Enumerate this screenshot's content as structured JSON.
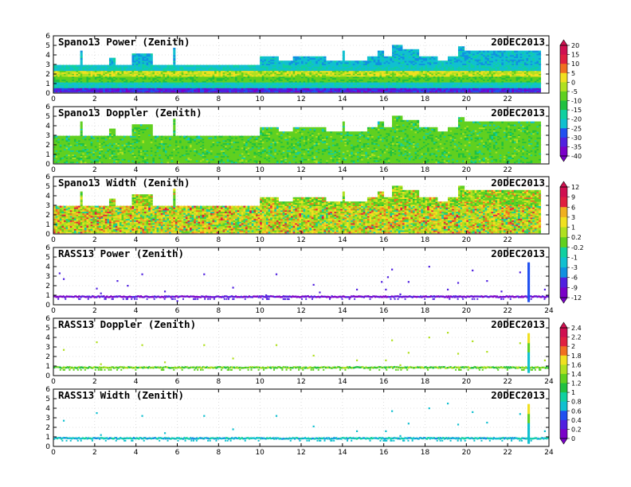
{
  "chart_data": [
    {
      "type": "heatmap",
      "title": "Spano13 Power (Zenith)",
      "date": "20DEC2013",
      "xlim": [
        0,
        24
      ],
      "ylim": [
        0,
        6
      ],
      "xticks": [
        0,
        2,
        4,
        6,
        8,
        10,
        12,
        14,
        16,
        18,
        20,
        22
      ],
      "yticks": [
        0,
        1,
        2,
        3,
        4,
        5,
        6
      ],
      "field": "power",
      "top_height_profile": [
        [
          0,
          2.8
        ],
        [
          1.2,
          2.8
        ],
        [
          1.3,
          4.3
        ],
        [
          1.4,
          2.8
        ],
        [
          2.6,
          2.8
        ],
        [
          2.7,
          3.6
        ],
        [
          3.0,
          2.8
        ],
        [
          3.7,
          2.8
        ],
        [
          3.8,
          4.1
        ],
        [
          4.6,
          4.1
        ],
        [
          4.7,
          2.8
        ],
        [
          5.6,
          2.8
        ],
        [
          5.7,
          4.7
        ],
        [
          5.8,
          2.8
        ],
        [
          9.8,
          2.8
        ],
        [
          9.9,
          3.8
        ],
        [
          10.7,
          3.8
        ],
        [
          10.8,
          3.3
        ],
        [
          11.4,
          3.3
        ],
        [
          11.5,
          3.8
        ],
        [
          13.0,
          3.8
        ],
        [
          13.1,
          3.3
        ],
        [
          13.8,
          3.3
        ],
        [
          13.9,
          4.3
        ],
        [
          14.0,
          3.3
        ],
        [
          15.0,
          3.3
        ],
        [
          15.1,
          3.7
        ],
        [
          15.5,
          3.7
        ],
        [
          15.6,
          4.3
        ],
        [
          15.8,
          4.3
        ],
        [
          15.9,
          3.7
        ],
        [
          16.2,
          3.7
        ],
        [
          16.3,
          5.0
        ],
        [
          16.7,
          5.0
        ],
        [
          16.8,
          4.6
        ],
        [
          17.5,
          4.6
        ],
        [
          17.6,
          3.7
        ],
        [
          18.4,
          3.7
        ],
        [
          18.5,
          3.3
        ],
        [
          19.0,
          3.3
        ],
        [
          19.1,
          3.8
        ],
        [
          19.5,
          3.8
        ],
        [
          19.6,
          4.8
        ],
        [
          19.8,
          4.8
        ],
        [
          19.9,
          4.3
        ],
        [
          23.3,
          4.3
        ],
        [
          23.6,
          4.3
        ]
      ]
    },
    {
      "type": "heatmap",
      "title": "Spano13 Doppler (Zenith)",
      "date": "20DEC2013",
      "xlim": [
        0,
        24
      ],
      "ylim": [
        0,
        6
      ],
      "xticks": [
        0,
        2,
        4,
        6,
        8,
        10,
        12,
        14,
        16,
        18,
        20,
        22
      ],
      "yticks": [
        0,
        1,
        2,
        3,
        4,
        5,
        6
      ],
      "field": "doppler",
      "top_height_profile": [
        [
          0,
          2.8
        ],
        [
          1.2,
          2.8
        ],
        [
          1.3,
          4.3
        ],
        [
          1.4,
          2.8
        ],
        [
          2.6,
          2.8
        ],
        [
          2.7,
          3.6
        ],
        [
          3.0,
          2.8
        ],
        [
          3.7,
          2.8
        ],
        [
          3.8,
          4.1
        ],
        [
          4.6,
          4.1
        ],
        [
          4.7,
          2.8
        ],
        [
          5.6,
          2.8
        ],
        [
          5.7,
          4.7
        ],
        [
          5.8,
          2.8
        ],
        [
          9.8,
          2.8
        ],
        [
          9.9,
          3.8
        ],
        [
          10.7,
          3.8
        ],
        [
          10.8,
          3.3
        ],
        [
          11.4,
          3.3
        ],
        [
          11.5,
          3.8
        ],
        [
          13.0,
          3.8
        ],
        [
          13.1,
          3.3
        ],
        [
          13.8,
          3.3
        ],
        [
          13.9,
          4.3
        ],
        [
          14.0,
          3.3
        ],
        [
          15.0,
          3.3
        ],
        [
          15.1,
          3.7
        ],
        [
          15.5,
          3.7
        ],
        [
          15.6,
          4.3
        ],
        [
          15.8,
          4.3
        ],
        [
          15.9,
          3.7
        ],
        [
          16.2,
          3.7
        ],
        [
          16.3,
          5.0
        ],
        [
          16.7,
          5.0
        ],
        [
          16.8,
          4.6
        ],
        [
          17.5,
          4.6
        ],
        [
          17.6,
          3.7
        ],
        [
          18.4,
          3.7
        ],
        [
          18.5,
          3.3
        ],
        [
          19.0,
          3.3
        ],
        [
          19.1,
          3.8
        ],
        [
          19.5,
          3.8
        ],
        [
          19.6,
          4.8
        ],
        [
          19.8,
          4.8
        ],
        [
          19.9,
          4.3
        ],
        [
          23.3,
          4.3
        ],
        [
          23.6,
          4.3
        ]
      ]
    },
    {
      "type": "heatmap",
      "title": "Spano13 Width (Zenith)",
      "date": "20DEC2013",
      "xlim": [
        0,
        24
      ],
      "ylim": [
        0,
        6
      ],
      "xticks": [
        0,
        2,
        4,
        6,
        8,
        10,
        12,
        14,
        16,
        18,
        20,
        22
      ],
      "yticks": [
        0,
        1,
        2,
        3,
        4,
        5,
        6
      ],
      "field": "width",
      "top_height_profile": [
        [
          0,
          2.8
        ],
        [
          1.2,
          2.8
        ],
        [
          1.3,
          4.3
        ],
        [
          1.4,
          2.8
        ],
        [
          2.6,
          2.8
        ],
        [
          2.7,
          3.6
        ],
        [
          3.0,
          2.8
        ],
        [
          3.7,
          2.8
        ],
        [
          3.8,
          4.1
        ],
        [
          4.6,
          4.1
        ],
        [
          4.7,
          2.8
        ],
        [
          5.6,
          2.8
        ],
        [
          5.7,
          4.7
        ],
        [
          5.8,
          2.8
        ],
        [
          9.8,
          2.8
        ],
        [
          9.9,
          3.8
        ],
        [
          10.7,
          3.8
        ],
        [
          10.8,
          3.3
        ],
        [
          11.4,
          3.3
        ],
        [
          11.5,
          3.8
        ],
        [
          13.0,
          3.8
        ],
        [
          13.1,
          3.3
        ],
        [
          13.8,
          3.3
        ],
        [
          13.9,
          4.3
        ],
        [
          14.0,
          3.3
        ],
        [
          15.0,
          3.3
        ],
        [
          15.1,
          3.7
        ],
        [
          15.5,
          3.7
        ],
        [
          15.6,
          4.3
        ],
        [
          15.8,
          4.3
        ],
        [
          15.9,
          3.7
        ],
        [
          16.2,
          3.7
        ],
        [
          16.3,
          5.0
        ],
        [
          16.7,
          5.0
        ],
        [
          16.8,
          4.6
        ],
        [
          17.5,
          4.6
        ],
        [
          17.6,
          3.7
        ],
        [
          18.4,
          3.7
        ],
        [
          18.5,
          3.3
        ],
        [
          19.0,
          3.3
        ],
        [
          19.1,
          3.8
        ],
        [
          19.5,
          3.8
        ],
        [
          19.6,
          5.0
        ],
        [
          19.8,
          5.0
        ],
        [
          19.9,
          4.6
        ],
        [
          23.3,
          4.6
        ],
        [
          23.6,
          4.6
        ]
      ]
    },
    {
      "type": "scatter",
      "title": "RASS13 Power (Zenith)",
      "date": "20DEC2013",
      "xlim": [
        0,
        24
      ],
      "ylim": [
        0,
        6
      ],
      "xticks": [
        0,
        2,
        4,
        6,
        8,
        10,
        12,
        14,
        16,
        18,
        20,
        22,
        24
      ],
      "yticks": [
        0,
        1,
        2,
        3,
        4,
        5,
        6
      ],
      "field": "power",
      "band_height": 0.85,
      "spike_x": 23.0,
      "points": [
        [
          0.3,
          3.3
        ],
        [
          0.5,
          2.7
        ],
        [
          2.1,
          1.7
        ],
        [
          2.3,
          1.2
        ],
        [
          3.1,
          2.5
        ],
        [
          3.6,
          2.0
        ],
        [
          4.3,
          3.2
        ],
        [
          5.4,
          1.4
        ],
        [
          6.0,
          0.4
        ],
        [
          7.3,
          3.2
        ],
        [
          8.7,
          1.8
        ],
        [
          10.3,
          1.0
        ],
        [
          10.8,
          3.2
        ],
        [
          11.4,
          0.6
        ],
        [
          12.6,
          2.1
        ],
        [
          12.9,
          1.3
        ],
        [
          14.7,
          1.6
        ],
        [
          15.9,
          2.4
        ],
        [
          16.1,
          1.6
        ],
        [
          16.2,
          2.9
        ],
        [
          16.4,
          3.7
        ],
        [
          16.8,
          1.1
        ],
        [
          17.2,
          2.4
        ],
        [
          18.2,
          4.0
        ],
        [
          19.1,
          1.6
        ],
        [
          19.6,
          2.3
        ],
        [
          20.3,
          3.6
        ],
        [
          21.0,
          2.5
        ],
        [
          21.7,
          1.4
        ],
        [
          22.6,
          3.4
        ],
        [
          23.8,
          1.6
        ]
      ]
    },
    {
      "type": "scatter",
      "title": "RASS13 Doppler (Zenith)",
      "date": "20DEC2013",
      "xlim": [
        0,
        24
      ],
      "ylim": [
        0,
        6
      ],
      "xticks": [
        0,
        2,
        4,
        6,
        8,
        10,
        12,
        14,
        16,
        18,
        20,
        22,
        24
      ],
      "yticks": [
        0,
        1,
        2,
        3,
        4,
        5,
        6
      ],
      "field": "doppler",
      "band_height": 0.85,
      "spike_x": 23.0,
      "points": [
        [
          0.5,
          2.7
        ],
        [
          2.1,
          3.5
        ],
        [
          2.3,
          1.2
        ],
        [
          4.3,
          3.2
        ],
        [
          5.4,
          1.4
        ],
        [
          7.3,
          3.2
        ],
        [
          8.7,
          1.8
        ],
        [
          10.8,
          3.2
        ],
        [
          12.6,
          2.1
        ],
        [
          14.7,
          1.6
        ],
        [
          16.1,
          1.6
        ],
        [
          16.4,
          3.7
        ],
        [
          16.8,
          1.1
        ],
        [
          17.2,
          2.4
        ],
        [
          18.2,
          4.0
        ],
        [
          19.1,
          4.5
        ],
        [
          19.6,
          2.3
        ],
        [
          20.3,
          3.6
        ],
        [
          21.0,
          2.5
        ],
        [
          22.6,
          3.4
        ],
        [
          23.8,
          1.6
        ]
      ]
    },
    {
      "type": "scatter",
      "title": "RASS13 Width (Zenith)",
      "date": "20DEC2013",
      "xlim": [
        0,
        24
      ],
      "ylim": [
        0,
        6
      ],
      "xticks": [
        0,
        2,
        4,
        6,
        8,
        10,
        12,
        14,
        16,
        18,
        20,
        22,
        24
      ],
      "yticks": [
        0,
        1,
        2,
        3,
        4,
        5,
        6
      ],
      "field": "width",
      "band_height": 0.85,
      "spike_x": 23.0,
      "points": [
        [
          0.5,
          2.7
        ],
        [
          2.1,
          3.5
        ],
        [
          2.3,
          1.2
        ],
        [
          4.3,
          3.2
        ],
        [
          5.4,
          1.4
        ],
        [
          7.3,
          3.2
        ],
        [
          8.7,
          1.8
        ],
        [
          10.8,
          3.2
        ],
        [
          12.6,
          2.1
        ],
        [
          14.7,
          1.6
        ],
        [
          16.1,
          1.6
        ],
        [
          16.4,
          3.7
        ],
        [
          16.8,
          1.1
        ],
        [
          17.2,
          2.4
        ],
        [
          18.2,
          4.0
        ],
        [
          19.1,
          4.5
        ],
        [
          19.6,
          2.3
        ],
        [
          20.3,
          3.6
        ],
        [
          21.0,
          2.5
        ],
        [
          22.6,
          3.4
        ],
        [
          23.8,
          1.6
        ]
      ]
    }
  ],
  "colorbars": [
    {
      "applies_to": "Spano13 Power / Doppler",
      "labels": [
        "20",
        "15",
        "10",
        "5",
        "0",
        "-5",
        "-10",
        "-15",
        "-20",
        "-25",
        "-30",
        "-35",
        "-40"
      ]
    },
    {
      "applies_to": "Spano13 Width / RASS13 Power",
      "labels": [
        "12",
        "9",
        "6",
        "3",
        "1",
        "0.2",
        "-0.2",
        "-1",
        "-3",
        "-6",
        "-9",
        "-12"
      ]
    },
    {
      "applies_to": "RASS13 Doppler / Width",
      "labels": [
        "2.4",
        "2.2",
        "2",
        "1.8",
        "1.6",
        "1.4",
        "1.2",
        "1",
        "0.8",
        "0.6",
        "0.4",
        "0.2",
        "0"
      ]
    }
  ],
  "palette": [
    "#7a00c8",
    "#5020e0",
    "#2050f0",
    "#1090e0",
    "#10c0d0",
    "#10d0a0",
    "#20c040",
    "#60d020",
    "#b0e020",
    "#f0e020",
    "#f0b020",
    "#f07020",
    "#e02040",
    "#d01050"
  ]
}
